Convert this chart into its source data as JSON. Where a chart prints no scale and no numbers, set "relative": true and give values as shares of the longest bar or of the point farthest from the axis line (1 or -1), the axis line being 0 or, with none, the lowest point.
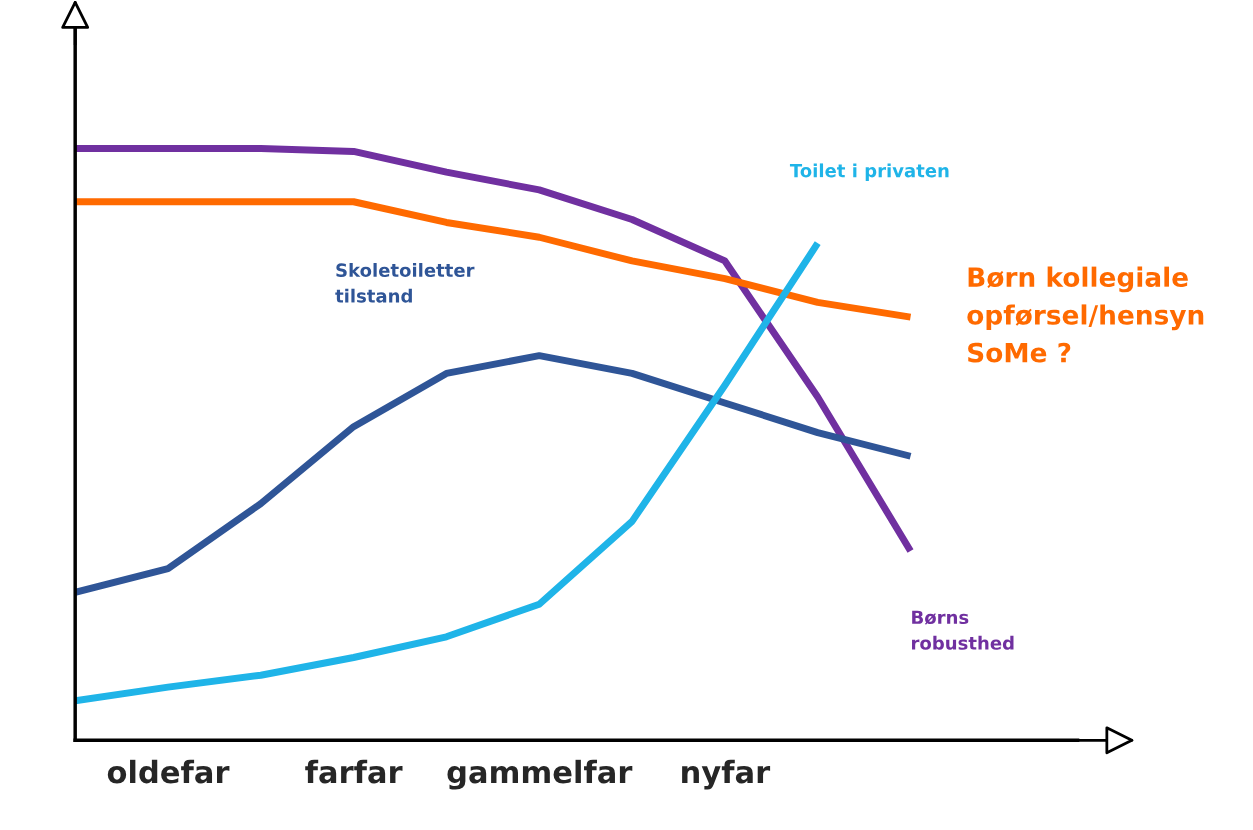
{
  "chart_data": {
    "type": "line",
    "relative": true,
    "grid": false,
    "legend": false,
    "marker": "none",
    "line_style": "solid",
    "categories": [
      null,
      "oldefar",
      null,
      "farfar",
      null,
      "gammelfar",
      null,
      "nyfar",
      null,
      null,
      null
    ],
    "series": [
      {
        "name": "Børns\nrobusthed",
        "color": "#7030a0",
        "values": [
          1.0,
          1.0,
          1.0,
          0.995,
          0.96,
          0.93,
          0.88,
          0.81,
          0.58,
          0.32,
          null
        ]
      },
      {
        "name": "Børn kollegiale\nopførsel/hensyn\nSoMe ?",
        "color": "#ff6a00",
        "values": [
          0.91,
          0.91,
          0.91,
          0.91,
          0.875,
          0.85,
          0.81,
          0.78,
          0.74,
          0.715,
          null
        ]
      },
      {
        "name": "Skoletoiletter\ntilstand",
        "color": "#2f5597",
        "values": [
          0.25,
          0.29,
          0.4,
          0.53,
          0.62,
          0.65,
          0.62,
          0.57,
          0.52,
          0.48,
          null
        ]
      },
      {
        "name": "Toilet i privaten",
        "color": "#1fb4e8",
        "values": [
          0.067,
          0.09,
          0.11,
          0.14,
          0.175,
          0.23,
          0.37,
          0.6,
          0.84,
          null,
          null
        ]
      }
    ]
  }
}
